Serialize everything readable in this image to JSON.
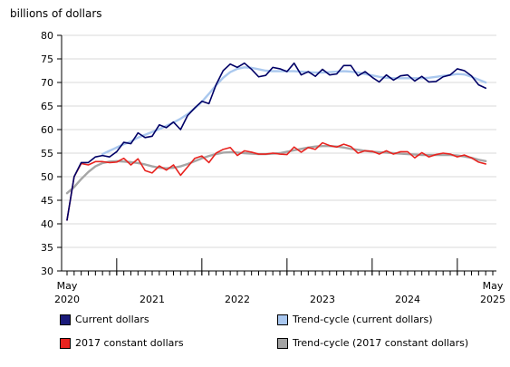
{
  "chart_data": {
    "type": "line",
    "ylabel": "billions of dollars",
    "ylim": [
      30,
      80
    ],
    "yticks": [
      30,
      35,
      40,
      45,
      50,
      55,
      60,
      65,
      70,
      75,
      80
    ],
    "grid": true,
    "start_month": "2020-05",
    "end_month": "2025-05",
    "x_tick_labels": [
      {
        "month": "2020-05",
        "top": "May",
        "bottom": "2020"
      },
      {
        "month": "2021-05",
        "top": "",
        "bottom": "2021"
      },
      {
        "month": "2022-05",
        "top": "",
        "bottom": "2022"
      },
      {
        "month": "2023-05",
        "top": "",
        "bottom": "2023"
      },
      {
        "month": "2024-05",
        "top": "",
        "bottom": "2024"
      },
      {
        "month": "2025-05",
        "top": "May",
        "bottom": "2025"
      }
    ],
    "major_tick_months": [
      "2020-12",
      "2021-12",
      "2022-12",
      "2023-12",
      "2024-12"
    ],
    "legend": {
      "position": "bottom"
    },
    "series": [
      {
        "name": "Current dollars",
        "color": "#000066",
        "legend_fill": "#1a1a7a",
        "width": 1.6,
        "values": [
          40.8,
          50.0,
          53.0,
          53.0,
          54.2,
          54.5,
          54.2,
          55.3,
          57.3,
          57.0,
          59.3,
          58.3,
          58.6,
          61.0,
          60.4,
          61.6,
          60.0,
          63.0,
          64.6,
          66.0,
          65.5,
          69.5,
          72.5,
          73.9,
          73.2,
          74.1,
          72.8,
          71.2,
          71.5,
          73.2,
          72.9,
          72.3,
          74.1,
          71.6,
          72.3,
          71.3,
          72.8,
          71.6,
          71.8,
          73.6,
          73.6,
          71.4,
          72.3,
          71.1,
          70.1,
          71.6,
          70.5,
          71.4,
          71.6,
          70.3,
          71.3,
          70.1,
          70.2,
          71.2,
          71.6,
          72.9,
          72.5,
          71.4,
          69.5,
          68.8
        ]
      },
      {
        "name": "Trend-cycle (current dollars)",
        "color": "#aac8ee",
        "legend_fill": "#a9c7ef",
        "width": 2.4,
        "values": [
          null,
          null,
          null,
          null,
          null,
          54.8,
          55.5,
          56.2,
          56.9,
          57.5,
          58.3,
          58.9,
          59.5,
          60.1,
          60.8,
          61.5,
          62.3,
          63.3,
          64.5,
          65.9,
          67.6,
          69.4,
          71.0,
          72.2,
          72.9,
          73.2,
          73.1,
          72.8,
          72.5,
          72.4,
          72.4,
          72.4,
          72.4,
          72.3,
          72.2,
          72.1,
          72.1,
          72.2,
          72.3,
          72.4,
          72.3,
          72.1,
          71.8,
          71.5,
          71.2,
          71.0,
          70.9,
          70.9,
          70.9,
          70.9,
          70.9,
          71.0,
          71.2,
          71.4,
          71.6,
          71.8,
          71.7,
          71.2,
          70.6,
          70.0
        ]
      },
      {
        "name": "2017 constant dollars",
        "color": "#e8231f",
        "legend_fill": "#e8231f",
        "width": 1.6,
        "values": [
          40.8,
          50.0,
          52.8,
          52.5,
          53.2,
          53.2,
          53.0,
          53.1,
          53.9,
          52.5,
          53.8,
          51.3,
          50.8,
          52.3,
          51.4,
          52.5,
          50.3,
          52.1,
          53.9,
          54.4,
          53.0,
          55.0,
          55.8,
          56.2,
          54.5,
          55.5,
          55.2,
          54.8,
          54.8,
          55.0,
          54.8,
          54.7,
          56.3,
          55.2,
          56.2,
          55.8,
          57.2,
          56.6,
          56.3,
          56.9,
          56.4,
          55.0,
          55.5,
          55.4,
          54.8,
          55.5,
          54.8,
          55.3,
          55.3,
          54.0,
          55.1,
          54.2,
          54.7,
          55.0,
          54.8,
          54.2,
          54.6,
          54.0,
          53.1,
          52.7
        ]
      },
      {
        "name": "Trend-cycle (2017 constant dollars)",
        "color": "#a6a6a6",
        "legend_fill": "#a3a3a3",
        "width": 2.4,
        "values": [
          46.5,
          47.8,
          49.5,
          51.0,
          52.2,
          52.9,
          53.2,
          53.3,
          53.2,
          53.1,
          52.9,
          52.6,
          52.2,
          51.9,
          51.8,
          51.9,
          52.2,
          52.7,
          53.3,
          53.9,
          54.4,
          54.8,
          55.1,
          55.2,
          55.1,
          55.0,
          54.9,
          54.8,
          54.8,
          54.9,
          55.0,
          55.3,
          55.6,
          55.9,
          56.2,
          56.4,
          56.5,
          56.5,
          56.4,
          56.2,
          55.9,
          55.7,
          55.5,
          55.3,
          55.2,
          55.1,
          55.0,
          54.9,
          54.8,
          54.7,
          54.6,
          54.6,
          54.6,
          54.6,
          54.6,
          54.5,
          54.3,
          54.0,
          53.6,
          53.3
        ]
      }
    ]
  },
  "legend_items": [
    {
      "label": "Current dollars"
    },
    {
      "label": "Trend-cycle (current dollars)"
    },
    {
      "label": "2017 constant dollars"
    },
    {
      "label": "Trend-cycle (2017 constant dollars)"
    }
  ]
}
